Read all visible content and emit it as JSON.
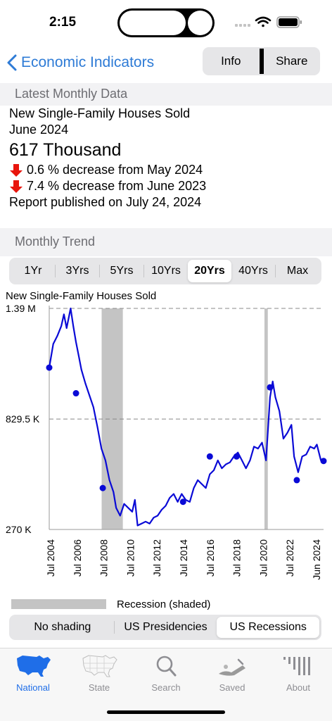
{
  "status": {
    "time": "2:15"
  },
  "nav": {
    "back_label": "Economic Indicators",
    "info_label": "Info",
    "share_label": "Share"
  },
  "latest": {
    "header": "Latest Monthly Data",
    "series_title": "New Single-Family Houses Sold",
    "period": "June 2024",
    "value": "617 Thousand",
    "change_month": "0.6 % decrease from May 2024",
    "change_year": "7.4 % decrease from June 2023",
    "published": "Report published on July 24, 2024"
  },
  "trend": {
    "header": "Monthly Trend",
    "ranges": [
      "1Yr",
      "3Yrs",
      "5Yrs",
      "10Yrs",
      "20Yrs",
      "40Yrs",
      "Max"
    ],
    "active_range": "20Yrs"
  },
  "chart_data": {
    "type": "line",
    "title": "New Single-Family Houses Sold",
    "y_tick_labels": [
      "1.39 M",
      "829.5 K",
      "270 K"
    ],
    "y_ticks": [
      1390,
      829.5,
      270
    ],
    "ylim": [
      270,
      1390
    ],
    "x_tick_labels": [
      "Jul 2004",
      "Jul 2006",
      "Jul 2008",
      "Jul 2010",
      "Jul 2012",
      "Jul 2014",
      "Jul 2016",
      "Jul 2018",
      "Jul 2020",
      "Jul 2022",
      "Jun 2024"
    ],
    "xlim": [
      2004.0,
      2024.5
    ],
    "series": [
      {
        "color": "#0a0ad6",
        "points": [
          [
            2004.0,
            1090
          ],
          [
            2004.3,
            1210
          ],
          [
            2004.6,
            1250
          ],
          [
            2004.9,
            1300
          ],
          [
            2005.1,
            1360
          ],
          [
            2005.3,
            1290
          ],
          [
            2005.6,
            1390
          ],
          [
            2005.8,
            1300
          ],
          [
            2006.0,
            1220
          ],
          [
            2006.2,
            1150
          ],
          [
            2006.4,
            1080
          ],
          [
            2006.7,
            1010
          ],
          [
            2007.0,
            950
          ],
          [
            2007.3,
            890
          ],
          [
            2007.6,
            790
          ],
          [
            2007.9,
            680
          ],
          [
            2008.2,
            620
          ],
          [
            2008.5,
            520
          ],
          [
            2008.8,
            460
          ],
          [
            2009.0,
            380
          ],
          [
            2009.3,
            340
          ],
          [
            2009.6,
            400
          ],
          [
            2009.9,
            380
          ],
          [
            2010.2,
            360
          ],
          [
            2010.4,
            420
          ],
          [
            2010.6,
            290
          ],
          [
            2010.9,
            300
          ],
          [
            2011.2,
            310
          ],
          [
            2011.5,
            300
          ],
          [
            2011.8,
            330
          ],
          [
            2012.1,
            340
          ],
          [
            2012.4,
            370
          ],
          [
            2012.7,
            390
          ],
          [
            2013.0,
            430
          ],
          [
            2013.3,
            450
          ],
          [
            2013.6,
            410
          ],
          [
            2013.9,
            450
          ],
          [
            2014.2,
            420
          ],
          [
            2014.5,
            410
          ],
          [
            2014.8,
            480
          ],
          [
            2015.1,
            520
          ],
          [
            2015.4,
            500
          ],
          [
            2015.7,
            480
          ],
          [
            2016.0,
            550
          ],
          [
            2016.3,
            570
          ],
          [
            2016.6,
            620
          ],
          [
            2016.9,
            580
          ],
          [
            2017.2,
            600
          ],
          [
            2017.5,
            610
          ],
          [
            2017.8,
            640
          ],
          [
            2018.1,
            660
          ],
          [
            2018.4,
            620
          ],
          [
            2018.7,
            580
          ],
          [
            2019.0,
            620
          ],
          [
            2019.3,
            690
          ],
          [
            2019.6,
            680
          ],
          [
            2019.9,
            710
          ],
          [
            2020.2,
            620
          ],
          [
            2020.5,
            940
          ],
          [
            2020.7,
            1020
          ],
          [
            2020.9,
            940
          ],
          [
            2021.2,
            870
          ],
          [
            2021.5,
            730
          ],
          [
            2021.8,
            760
          ],
          [
            2022.1,
            800
          ],
          [
            2022.3,
            640
          ],
          [
            2022.6,
            560
          ],
          [
            2022.9,
            640
          ],
          [
            2023.2,
            650
          ],
          [
            2023.5,
            690
          ],
          [
            2023.8,
            680
          ],
          [
            2024.0,
            700
          ],
          [
            2024.3,
            620
          ],
          [
            2024.5,
            617
          ]
        ],
        "markers": [
          [
            2004.0,
            1090
          ],
          [
            2006.0,
            960
          ],
          [
            2008.0,
            480
          ],
          [
            2014.0,
            410
          ],
          [
            2016.0,
            640
          ],
          [
            2018.0,
            640
          ],
          [
            2020.5,
            990
          ],
          [
            2022.5,
            520
          ],
          [
            2024.5,
            617
          ]
        ]
      }
    ],
    "recessions": [
      [
        2007.917,
        2009.5
      ],
      [
        2020.083,
        2020.333
      ]
    ],
    "grid": "dashed at y ticks"
  },
  "legend": {
    "recession_label": "Recession (shaded)"
  },
  "shading": {
    "options": [
      "No shading",
      "US Presidencies",
      "US Recessions"
    ],
    "active": "US Recessions"
  },
  "tabs": [
    {
      "label": "National",
      "icon": "us-map-icon",
      "active": true
    },
    {
      "label": "State",
      "icon": "state-map-icon",
      "active": false
    },
    {
      "label": "Search",
      "icon": "search-icon",
      "active": false
    },
    {
      "label": "Saved",
      "icon": "saved-icon",
      "active": false
    },
    {
      "label": "About",
      "icon": "about-icon",
      "active": false
    }
  ],
  "colors": {
    "accent": "#1f6ee8",
    "series": "#0a0ad6",
    "down": "#e8150c",
    "recession": "#c4c4c4"
  }
}
